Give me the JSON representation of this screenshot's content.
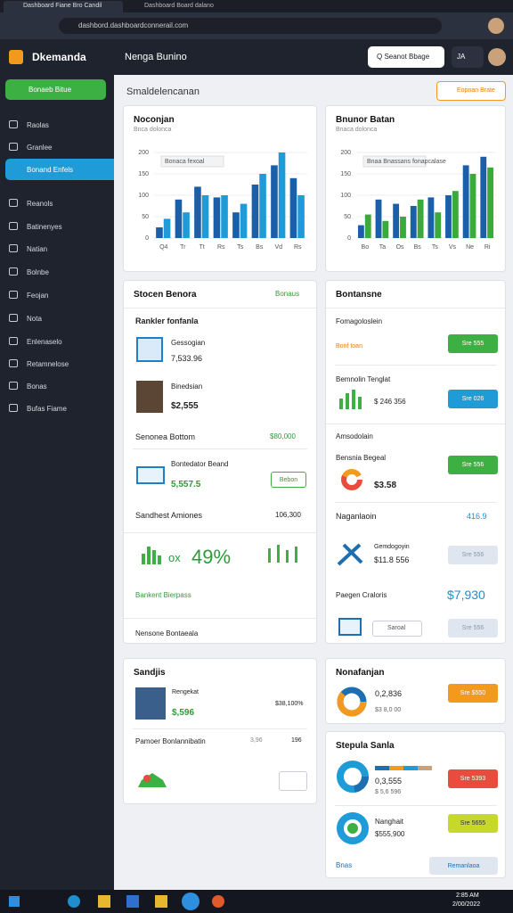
{
  "browser": {
    "tabs": [
      "Dashboard Fiane Bro Candil",
      "Dashboard Board dalano"
    ],
    "url": "dashbord.dashboardconnerail.com"
  },
  "header": {
    "brand": "Dkemanda",
    "title": "Nenga Bunino",
    "search": "Q Seanot Bbage",
    "user": "JA"
  },
  "sidebar": {
    "cta": "Bonaeb Bitue",
    "items": [
      "Raolas",
      "Granlee",
      "Bonand Enfels",
      "Reanols",
      "Batinenyes",
      "Natian",
      "Bolnbe",
      "Feojan",
      "Nota",
      "Enlenaselo",
      "Retamnelose",
      "Bonas",
      "Bufas Fiame"
    ]
  },
  "page": {
    "title": "Smaldelencanan",
    "action": "Eopnan Brate"
  },
  "charts": [
    {
      "type": "bar",
      "title": "Noconjan",
      "subtitle": "Bnca dolonca",
      "legend": "Bonaca fexoal",
      "ylim": [
        0,
        200
      ],
      "yticks": [
        0,
        50,
        100,
        150,
        200
      ],
      "categories": [
        "Q4",
        "Tr",
        "Tt",
        "Rs",
        "Ts",
        "Bs",
        "Vd",
        "Rs"
      ],
      "series": [
        {
          "color": "#1b5fa8",
          "values": [
            25,
            90,
            120,
            95,
            60,
            125,
            170,
            140
          ]
        },
        {
          "color": "#1f9bd7",
          "values": [
            45,
            60,
            100,
            100,
            80,
            150,
            200,
            100
          ]
        }
      ]
    },
    {
      "type": "bar",
      "title": "Bnunor Batan",
      "subtitle": "Bnaca dolonca",
      "legend": "Bnaa Bnassans fonapcalase",
      "ylim": [
        0,
        200
      ],
      "yticks": [
        0,
        50,
        100,
        150,
        200
      ],
      "categories": [
        "Bo",
        "Ta",
        "Os",
        "Bs",
        "Ts",
        "Vs",
        "Ne",
        "Ri"
      ],
      "series": [
        {
          "color": "#1b5fa8",
          "values": [
            30,
            90,
            80,
            75,
            95,
            100,
            170,
            190
          ]
        },
        {
          "color": "#3aaa3a",
          "values": [
            55,
            40,
            50,
            90,
            60,
            110,
            150,
            165
          ]
        }
      ]
    }
  ],
  "stock": {
    "title": "Stocen Benora",
    "status": "Bonaus",
    "section": "Rankler fonfanla",
    "rows": [
      {
        "label": "Gessogian",
        "value": "7,533.96"
      },
      {
        "label": "Binedsian",
        "value": "$2,555"
      }
    ],
    "bottom": {
      "label": "Senonea Bottom",
      "value": "$80,000"
    },
    "board": {
      "label": "Bontedator Beand",
      "value": "5,557.5",
      "button": "Bebon"
    },
    "amounts": {
      "label": "Sandhest Amiones",
      "value": "106,300",
      "percent": "49%",
      "prefix": "ox"
    },
    "link": "Bankent Bierpass",
    "note": "Nensone Bontaeala"
  },
  "balance": {
    "title": "Bontansne",
    "rows": [
      {
        "label": "Fomagoloslein",
        "sub": "Bonf toan",
        "button": "Sre 555"
      },
      {
        "label": "Bemnolin Tenglat",
        "value": "$ 246 356",
        "button": "Sre 026"
      }
    ],
    "section": "Amsodolain",
    "row3": {
      "label": "Bensnia Begeal",
      "value": "$3.58",
      "button": "Sre 556"
    },
    "section2": {
      "label": "Naganlaoin",
      "value": "416.9"
    },
    "row4": {
      "label": "Gemdogoyin",
      "value": "$11.8 556",
      "button": "Sre 556"
    },
    "section3": {
      "label": "Paegen Craloris",
      "value": "$7,930"
    },
    "row5": {
      "input": "Saroal",
      "button": "Sre 556"
    }
  },
  "savings": {
    "title": "Sandjis",
    "item": "Rengekat",
    "value": "$,596",
    "total": "$38,100%",
    "row": "Pamoer Bonlannibatin",
    "a": "3,96",
    "b": "196"
  },
  "finance": {
    "title": "Nonafanjan",
    "value": "0,2,836",
    "sub": "$3 8,0 00",
    "button": "Sre $550"
  },
  "split": {
    "title": "Stepula Sanla",
    "value": "0,3,555",
    "sub": "$ 5,6 596",
    "button": "Sre 5393",
    "item": "Nanghait",
    "item_value": "$555,900",
    "button2": "Sre 5655",
    "link": "Bnas",
    "action": "Remanlaoa"
  },
  "taskbar": {
    "time": "2:85 AM",
    "date": "2/00/2022"
  }
}
